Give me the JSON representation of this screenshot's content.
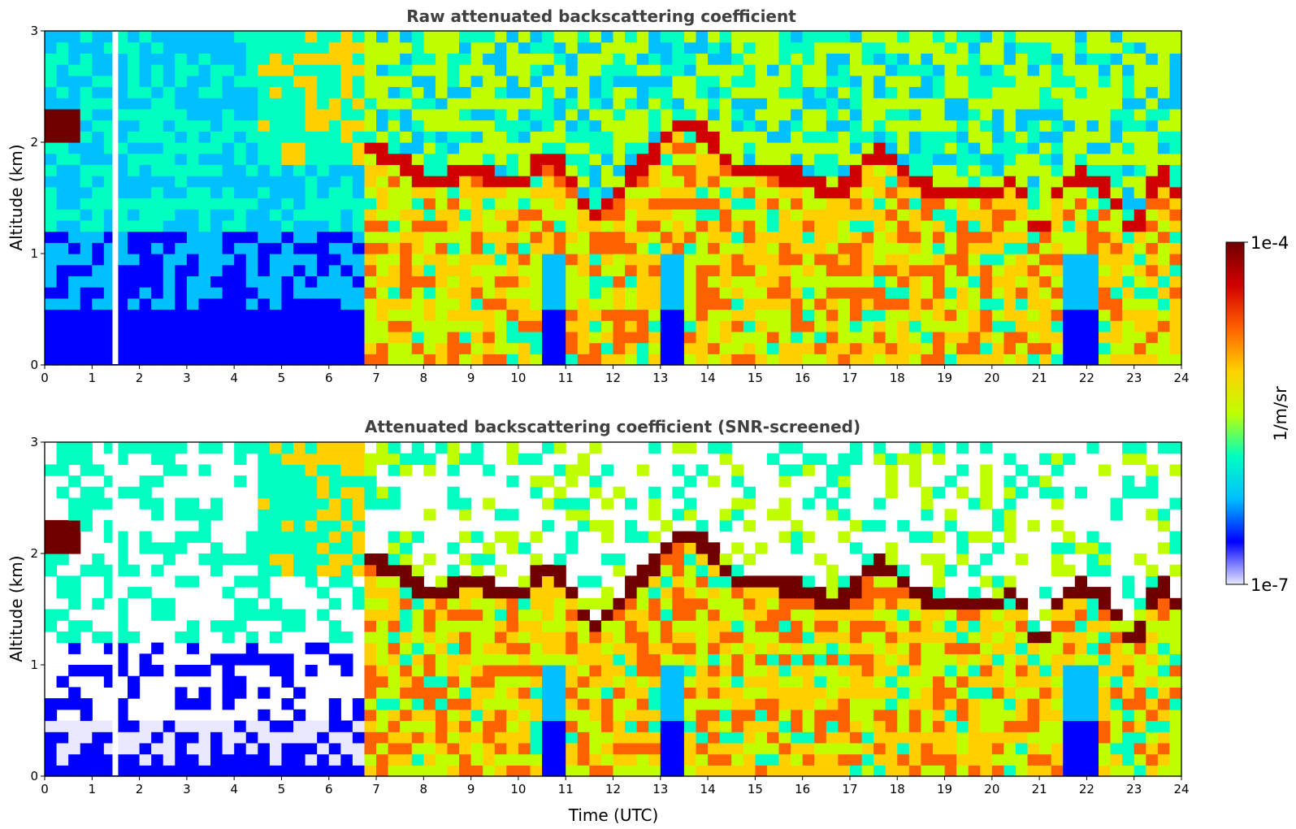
{
  "chart_data": [
    {
      "type": "heatmap",
      "title": "Raw attenuated backscattering coefficient",
      "xlabel": "",
      "ylabel": "Altitude (km)",
      "xlim": [
        0,
        24
      ],
      "ylim": [
        0,
        3
      ],
      "x_ticks": [
        "0",
        "1",
        "2",
        "3",
        "4",
        "5",
        "6",
        "7",
        "8",
        "9",
        "10",
        "11",
        "12",
        "13",
        "14",
        "15",
        "16",
        "17",
        "18",
        "19",
        "20",
        "21",
        "22",
        "23",
        "24"
      ],
      "y_ticks": [
        "0",
        "1",
        "2",
        "3"
      ],
      "data_gap_time_h": 1.5,
      "cloud_top_km": [
        {
          "t": 6.8,
          "z": 1.95
        },
        {
          "t": 7.5,
          "z": 1.85
        },
        {
          "t": 8.0,
          "z": 1.65
        },
        {
          "t": 8.5,
          "z": 1.65
        },
        {
          "t": 9.0,
          "z": 1.75
        },
        {
          "t": 9.5,
          "z": 1.65
        },
        {
          "t": 10.0,
          "z": 1.6
        },
        {
          "t": 10.5,
          "z": 1.85
        },
        {
          "t": 11.0,
          "z": 1.75
        },
        {
          "t": 11.5,
          "z": 1.3
        },
        {
          "t": 12.0,
          "z": 1.5
        },
        {
          "t": 12.5,
          "z": 1.75
        },
        {
          "t": 13.0,
          "z": 1.95
        },
        {
          "t": 13.5,
          "z": 2.2
        },
        {
          "t": 14.0,
          "z": 2.05
        },
        {
          "t": 14.5,
          "z": 1.75
        },
        {
          "t": 15.0,
          "z": 1.75
        },
        {
          "t": 15.5,
          "z": 1.7
        },
        {
          "t": 16.0,
          "z": 1.7
        },
        {
          "t": 16.5,
          "z": 1.55
        },
        {
          "t": 17.0,
          "z": 1.6
        },
        {
          "t": 17.5,
          "z": 1.9
        },
        {
          "t": 18.0,
          "z": 1.8
        },
        {
          "t": 18.5,
          "z": 1.6
        },
        {
          "t": 19.0,
          "z": 1.5
        },
        {
          "t": 19.5,
          "z": 1.55
        },
        {
          "t": 20.0,
          "z": 1.5
        },
        {
          "t": 20.5,
          "z": 1.7
        },
        {
          "t": 21.0,
          "z": 1.1
        },
        {
          "t": 21.5,
          "z": 1.65
        },
        {
          "t": 22.0,
          "z": 1.7
        },
        {
          "t": 22.5,
          "z": 1.55
        },
        {
          "t": 23.0,
          "z": 1.15
        },
        {
          "t": 23.5,
          "z": 1.75
        },
        {
          "t": 24.0,
          "z": 1.5
        }
      ]
    },
    {
      "type": "heatmap",
      "title": "Attenuated backscattering coefficient (SNR-screened)",
      "xlabel": "Time (UTC)",
      "ylabel": "Altitude (km)",
      "xlim": [
        0,
        24
      ],
      "ylim": [
        0,
        3
      ],
      "x_ticks": [
        "0",
        "1",
        "2",
        "3",
        "4",
        "5",
        "6",
        "7",
        "8",
        "9",
        "10",
        "11",
        "12",
        "13",
        "14",
        "15",
        "16",
        "17",
        "18",
        "19",
        "20",
        "21",
        "22",
        "23",
        "24"
      ],
      "y_ticks": [
        "0",
        "1",
        "2",
        "3"
      ],
      "data_gap_time_h": 1.5
    }
  ],
  "colorbar": {
    "label": "1/m/sr",
    "max_label": "1e-4",
    "min_label": "1e-7",
    "scale": "log",
    "colormap": [
      "#e8e8ff",
      "#0000ff",
      "#00c0ff",
      "#00ffc0",
      "#c0ff00",
      "#ffd000",
      "#ff6000",
      "#d00000",
      "#700000"
    ]
  }
}
